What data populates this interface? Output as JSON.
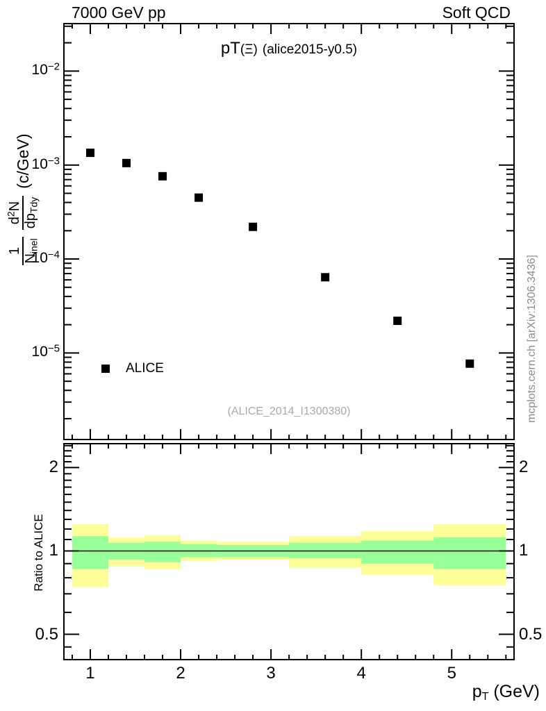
{
  "header": {
    "left": "7000 GeV pp",
    "right": "Soft QCD"
  },
  "title": {
    "prefix": "pT",
    "particle": "(Ξ)",
    "suffix": "(alice2015-y0.5)"
  },
  "y_axis": {
    "label": {
      "frac1_num": "1",
      "frac1_den": "N",
      "frac1_den_sub": "inel",
      "frac2_num_pre": "d",
      "frac2_num_sup": "2",
      "frac2_num_post": "N",
      "frac2_den": "dp",
      "frac2_den_sub": "Tdy",
      "units": "(c/GeV)"
    },
    "tick_labels": [
      {
        "base": "10",
        "exp": "−2",
        "value": 0.01
      },
      {
        "base": "10",
        "exp": "−3",
        "value": 0.001
      },
      {
        "base": "10",
        "exp": "−4",
        "value": 0.0001
      },
      {
        "base": "10",
        "exp": "−5",
        "value": 1e-05
      }
    ]
  },
  "x_axis": {
    "label_main": "p",
    "label_sub": "T",
    "label_units": " (GeV)",
    "tick_labels": [
      {
        "label": "1",
        "value": 1
      },
      {
        "label": "2",
        "value": 2
      },
      {
        "label": "3",
        "value": 3
      },
      {
        "label": "4",
        "value": 4
      },
      {
        "label": "5",
        "value": 5
      }
    ]
  },
  "ratio_axis": {
    "ylabel": "Ratio to ALICE",
    "tick_labels": [
      {
        "label": "2",
        "value": 2
      },
      {
        "label": "1",
        "value": 1
      },
      {
        "label": "0.5",
        "value": 0.5
      }
    ]
  },
  "legend": {
    "label": "ALICE"
  },
  "citation": "(ALICE_2014_I1300380)",
  "watermark": "mcplots.cern.ch [arXiv:1306.3436]",
  "colors": {
    "band_yellow": "#ffff99",
    "band_green": "#99ff99",
    "marker": "#000000",
    "citation_gray": "#ababab",
    "watermark_gray": "#8e8e8e"
  },
  "chart_data": [
    {
      "type": "scatter",
      "title": "pT(Ξ) (alice2015-y0.5)",
      "xlabel": "p_T (GeV)",
      "ylabel": "1/N_inel d2N/dp_Tdy (c/GeV)",
      "xlim": [
        0.708,
        5.69
      ],
      "ylim": [
        1.2e-06,
        0.032
      ],
      "yscale": "log",
      "grid": false,
      "legend_position": "lower-left-inside",
      "series": [
        {
          "name": "ALICE",
          "marker": "filled-black-square",
          "x": [
            1.0,
            1.4,
            1.8,
            2.2,
            2.8,
            3.6,
            4.4,
            5.2
          ],
          "y": [
            0.00135,
            0.00105,
            0.00076,
            0.00045,
            0.00022,
            6.4e-05,
            2.2e-05,
            7.7e-06
          ]
        }
      ]
    },
    {
      "type": "area",
      "title": "Ratio to ALICE",
      "xlim": [
        0.708,
        5.69
      ],
      "ylim": [
        0.405,
        2.44
      ],
      "yscale": "log",
      "reference_line": 1,
      "bins": [
        [
          0.8,
          1.2
        ],
        [
          1.2,
          1.6
        ],
        [
          1.6,
          2.0
        ],
        [
          2.0,
          2.4
        ],
        [
          2.4,
          3.2
        ],
        [
          3.2,
          4.0
        ],
        [
          4.0,
          4.8
        ],
        [
          4.8,
          5.6
        ]
      ],
      "bands": {
        "yellow": [
          [
            0.74,
            1.25
          ],
          [
            0.88,
            1.12
          ],
          [
            0.86,
            1.14
          ],
          [
            0.92,
            1.09
          ],
          [
            0.93,
            1.08
          ],
          [
            0.87,
            1.13
          ],
          [
            0.82,
            1.18
          ],
          [
            0.75,
            1.25
          ]
        ],
        "green": [
          [
            0.86,
            1.13
          ],
          [
            0.93,
            1.07
          ],
          [
            0.91,
            1.08
          ],
          [
            0.95,
            1.06
          ],
          [
            0.95,
            1.05
          ],
          [
            0.94,
            1.07
          ],
          [
            0.9,
            1.09
          ],
          [
            0.86,
            1.12
          ]
        ]
      }
    }
  ]
}
